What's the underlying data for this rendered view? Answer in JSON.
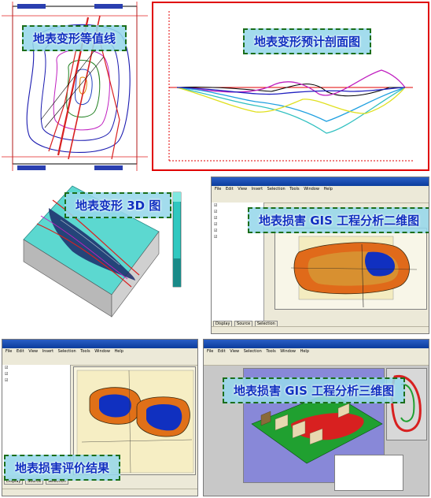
{
  "panels": {
    "contour": {
      "title": "地表变形等值线",
      "corner_labels": [
        "",
        "",
        "",
        ""
      ]
    },
    "profile": {
      "title": "地表变形预计剖面图",
      "y_label": "",
      "y_ticks": [
        "",
        "",
        "",
        "",
        "",
        "",
        "",
        "",
        "",
        ""
      ],
      "x_ticks": [
        "",
        "",
        "",
        "",
        "",
        "",
        "",
        "",
        "",
        "",
        "",
        "",
        ""
      ],
      "legend_title": "",
      "legend_items": [
        "",
        "",
        "",
        "",
        "",
        "",
        ""
      ]
    },
    "view3d": {
      "title": "地表变形 3D 图",
      "legend_values": [
        "",
        "",
        "",
        "",
        "",
        "",
        "",
        "",
        "",
        ""
      ]
    },
    "gis2d": {
      "title": "地表损害 GIS 工程分析二维图",
      "window_title": "",
      "menu": [
        "File",
        "Edit",
        "View",
        "Insert",
        "Selection",
        "Tools",
        "Window",
        "Help"
      ],
      "status": "",
      "tabs": [
        "Display",
        "Source",
        "Selection"
      ]
    },
    "gis_eval": {
      "title": "地表损害评价结果",
      "window_title": "",
      "menu": [
        "File",
        "Edit",
        "View",
        "Insert",
        "Selection",
        "Tools",
        "Window",
        "Help"
      ],
      "layers": [
        "",
        "",
        ""
      ],
      "status": "",
      "tabs": [
        "Display",
        "Source",
        "Selection"
      ]
    },
    "gis3d": {
      "title": "地表损害 GIS 工程分析三维图",
      "window_title": "",
      "menu": [
        "File",
        "Edit",
        "View",
        "Selection",
        "Tools",
        "Window",
        "Help"
      ]
    }
  },
  "colors": {
    "badge_text": "#1030c0",
    "badge_bg": "#96d7eb",
    "badge_border": "#1b6e1b",
    "profile_border": "#e00000",
    "mine_outline": "#d82020"
  }
}
